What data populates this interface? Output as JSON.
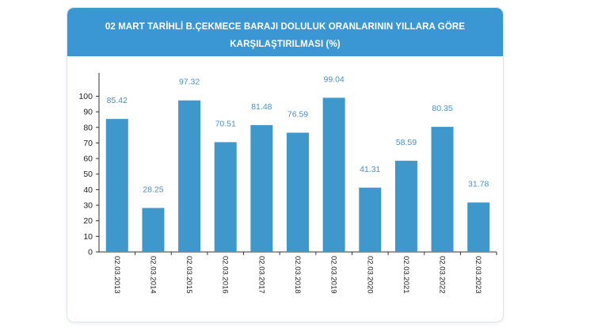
{
  "header": {
    "title": "02 MART TARİHLİ B.ÇEKMECE BARAJI DOLULUK ORANLARININ YILLARA GÖRE KARŞILAŞTIRILMASI (%)"
  },
  "colors": {
    "header_bg": "#3b97d3",
    "bar": "#3f98cc",
    "label": "#4a8fc4",
    "axis": "#333333"
  },
  "chart_data": {
    "type": "bar",
    "title": "02 MART TARİHLİ B.ÇEKMECE BARAJI DOLULUK ORANLARININ YILLARA GÖRE KARŞILAŞTIRILMASI (%)",
    "categories": [
      "02.03.2013",
      "02.03.2014",
      "02.03.2015",
      "02.03.2016",
      "02.03.2017",
      "02.03.2018",
      "02.03.2019",
      "02.03.2020",
      "02.03.2021",
      "02.03.2022",
      "02.03.2023"
    ],
    "values": [
      85.42,
      28.25,
      97.32,
      70.51,
      81.48,
      76.59,
      99.04,
      41.31,
      58.59,
      80.35,
      31.78
    ],
    "value_labels": [
      "85.42",
      "28.25",
      "97.32",
      "70.51",
      "81.48",
      "76.59",
      "99.04",
      "41.31",
      "58.59",
      "80.35",
      "31.78"
    ],
    "y_ticks": [
      "0",
      "10",
      "20",
      "30",
      "40",
      "50",
      "60",
      "70",
      "80",
      "90",
      "100"
    ],
    "ylim": [
      0,
      115
    ],
    "xlabel": "",
    "ylabel": "",
    "grid": false,
    "legend": "none"
  }
}
